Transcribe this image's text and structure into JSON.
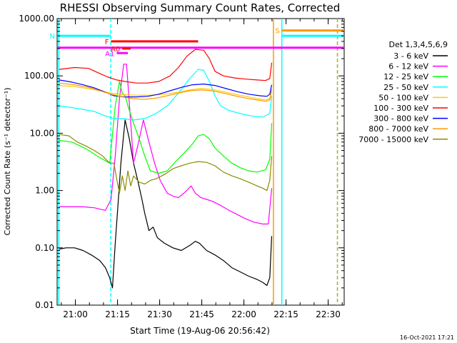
{
  "chart_data": {
    "type": "line",
    "title": "RHESSI Observing Summary Count Rates, Corrected",
    "xlabel": "Start Time (19-Aug-06 20:56:42)",
    "ylabel": "Corrected Count Rate (s⁻¹ detector⁻¹)",
    "yscale": "log",
    "ylim": [
      0.01,
      1000
    ],
    "x_units": "minutes after 20:56:42",
    "xlim": [
      -3.2,
      99.0
    ],
    "x_ticks": [
      {
        "label": "21:00",
        "value": 3.3
      },
      {
        "label": "21:15",
        "value": 18.3
      },
      {
        "label": "21:30",
        "value": 33.3
      },
      {
        "label": "21:45",
        "value": 48.3
      },
      {
        "label": "22:00",
        "value": 63.3
      },
      {
        "label": "22:15",
        "value": 78.3
      },
      {
        "label": "22:30",
        "value": 93.3
      }
    ],
    "y_ticks": [
      {
        "label": "1000.00",
        "value": 1000
      },
      {
        "label": "100.00",
        "value": 100
      },
      {
        "label": "10.00",
        "value": 10
      },
      {
        "label": "1.00",
        "value": 1
      },
      {
        "label": "0.10",
        "value": 0.1
      },
      {
        "label": "0.01",
        "value": 0.01
      }
    ],
    "legend_title": "Det 1,3,4,5,6,9",
    "legend_position": "right",
    "series": [
      {
        "name": "3 - 6 keV",
        "color": "#000000",
        "points": [
          [
            -2.5,
            0.095
          ],
          [
            0,
            0.1
          ],
          [
            3,
            0.1
          ],
          [
            6,
            0.09
          ],
          [
            9,
            0.075
          ],
          [
            12,
            0.06
          ],
          [
            14,
            0.045
          ],
          [
            15.5,
            0.03
          ],
          [
            16.5,
            0.02
          ],
          [
            17.5,
            0.12
          ],
          [
            18.5,
            0.6
          ],
          [
            19.5,
            3
          ],
          [
            21,
            17
          ],
          [
            22.5,
            8
          ],
          [
            24,
            3
          ],
          [
            25.5,
            1.5
          ],
          [
            27,
            0.7
          ],
          [
            28,
            0.4
          ],
          [
            29.5,
            0.2
          ],
          [
            31,
            0.23
          ],
          [
            32.5,
            0.15
          ],
          [
            35,
            0.12
          ],
          [
            38,
            0.1
          ],
          [
            41,
            0.09
          ],
          [
            44,
            0.11
          ],
          [
            46,
            0.13
          ],
          [
            47.5,
            0.12
          ],
          [
            50,
            0.09
          ],
          [
            53,
            0.075
          ],
          [
            56,
            0.06
          ],
          [
            59,
            0.045
          ],
          [
            62,
            0.038
          ],
          [
            65,
            0.032
          ],
          [
            68,
            0.028
          ],
          [
            70,
            0.025
          ],
          [
            71.5,
            0.022
          ],
          [
            72.5,
            0.03
          ],
          [
            73.2,
            0.16
          ]
        ]
      },
      {
        "name": "6 - 12 keV",
        "color": "#ff00ff",
        "points": [
          [
            -2.5,
            0.52
          ],
          [
            2,
            0.52
          ],
          [
            6,
            0.52
          ],
          [
            10,
            0.5
          ],
          [
            14,
            0.45
          ],
          [
            16,
            0.7
          ],
          [
            17.5,
            4
          ],
          [
            19,
            40
          ],
          [
            20.5,
            160
          ],
          [
            21.5,
            160
          ],
          [
            23,
            15
          ],
          [
            24,
            3
          ],
          [
            25.5,
            6
          ],
          [
            27.5,
            17
          ],
          [
            29.5,
            7
          ],
          [
            31.5,
            3
          ],
          [
            33.5,
            1.5
          ],
          [
            36,
            0.9
          ],
          [
            38,
            0.8
          ],
          [
            40,
            0.75
          ],
          [
            42.5,
            0.95
          ],
          [
            44.5,
            1.2
          ],
          [
            46,
            0.9
          ],
          [
            48,
            0.75
          ],
          [
            50,
            0.7
          ],
          [
            52,
            0.65
          ],
          [
            55,
            0.55
          ],
          [
            58,
            0.45
          ],
          [
            61,
            0.38
          ],
          [
            64,
            0.32
          ],
          [
            67,
            0.28
          ],
          [
            70,
            0.26
          ],
          [
            72,
            0.26
          ],
          [
            73.2,
            1.1
          ]
        ]
      },
      {
        "name": "12 - 25 keV",
        "color": "#00ff00",
        "points": [
          [
            -2.5,
            7.5
          ],
          [
            2,
            7
          ],
          [
            5,
            6
          ],
          [
            8,
            5
          ],
          [
            11,
            4
          ],
          [
            14,
            3.3
          ],
          [
            15.5,
            3
          ],
          [
            17.5,
            30
          ],
          [
            19,
            80
          ],
          [
            20,
            50
          ],
          [
            21,
            45
          ],
          [
            22,
            30
          ],
          [
            24,
            15
          ],
          [
            26,
            8
          ],
          [
            28,
            4
          ],
          [
            30,
            2.2
          ],
          [
            33,
            2
          ],
          [
            36,
            2.2
          ],
          [
            39,
            3.2
          ],
          [
            42,
            4.5
          ],
          [
            45,
            6.5
          ],
          [
            47,
            9
          ],
          [
            49,
            9.5
          ],
          [
            51,
            8
          ],
          [
            53,
            5.5
          ],
          [
            56,
            4
          ],
          [
            59,
            3
          ],
          [
            62,
            2.5
          ],
          [
            65,
            2.2
          ],
          [
            68,
            2.1
          ],
          [
            71,
            2.3
          ],
          [
            72.5,
            3.5
          ],
          [
            73.2,
            15
          ]
        ]
      },
      {
        "name": "25 - 50 keV",
        "color": "#00ffff",
        "points": [
          [
            -2.5,
            30
          ],
          [
            2,
            28
          ],
          [
            6,
            26
          ],
          [
            10,
            24
          ],
          [
            14,
            20
          ],
          [
            17,
            18
          ],
          [
            20,
            18
          ],
          [
            24,
            17
          ],
          [
            28,
            18
          ],
          [
            32,
            22
          ],
          [
            36,
            30
          ],
          [
            40,
            50
          ],
          [
            44,
            90
          ],
          [
            47,
            130
          ],
          [
            49,
            125
          ],
          [
            51,
            80
          ],
          [
            53,
            45
          ],
          [
            55,
            30
          ],
          [
            58,
            25
          ],
          [
            62,
            22
          ],
          [
            66,
            20
          ],
          [
            70,
            19
          ],
          [
            72.5,
            22
          ],
          [
            73.2,
            45
          ]
        ]
      },
      {
        "name": "50 - 100 keV",
        "color": "#ffc800",
        "points": [
          [
            -2.5,
            68
          ],
          [
            3,
            65
          ],
          [
            8,
            60
          ],
          [
            12,
            55
          ],
          [
            16,
            50
          ],
          [
            20,
            47
          ],
          [
            25,
            46
          ],
          [
            30,
            46
          ],
          [
            35,
            48
          ],
          [
            40,
            52
          ],
          [
            44,
            57
          ],
          [
            48,
            60
          ],
          [
            52,
            58
          ],
          [
            56,
            53
          ],
          [
            60,
            48
          ],
          [
            64,
            44
          ],
          [
            68,
            40
          ],
          [
            71,
            38
          ],
          [
            72.5,
            40
          ],
          [
            73.2,
            60
          ]
        ]
      },
      {
        "name": "100 - 300 keV",
        "color": "#ff0000",
        "points": [
          [
            -2.5,
            130
          ],
          [
            3,
            140
          ],
          [
            8,
            135
          ],
          [
            12,
            110
          ],
          [
            15,
            95
          ],
          [
            18,
            85
          ],
          [
            21,
            80
          ],
          [
            25,
            75
          ],
          [
            29,
            75
          ],
          [
            33,
            80
          ],
          [
            37,
            100
          ],
          [
            40,
            140
          ],
          [
            43,
            220
          ],
          [
            46,
            290
          ],
          [
            49,
            280
          ],
          [
            51,
            200
          ],
          [
            53,
            120
          ],
          [
            56,
            100
          ],
          [
            60,
            92
          ],
          [
            64,
            88
          ],
          [
            68,
            85
          ],
          [
            71,
            83
          ],
          [
            72.5,
            90
          ],
          [
            73.2,
            170
          ]
        ]
      },
      {
        "name": "300 - 800 keV",
        "color": "#0000ff",
        "points": [
          [
            -2.5,
            85
          ],
          [
            2,
            78
          ],
          [
            6,
            70
          ],
          [
            10,
            62
          ],
          [
            14,
            52
          ],
          [
            17,
            45
          ],
          [
            21,
            43
          ],
          [
            25,
            43
          ],
          [
            29,
            44
          ],
          [
            33,
            48
          ],
          [
            37,
            55
          ],
          [
            41,
            63
          ],
          [
            45,
            70
          ],
          [
            49,
            72
          ],
          [
            53,
            68
          ],
          [
            57,
            60
          ],
          [
            61,
            53
          ],
          [
            65,
            48
          ],
          [
            69,
            45
          ],
          [
            71.5,
            44
          ],
          [
            72.5,
            48
          ],
          [
            73.2,
            70
          ]
        ]
      },
      {
        "name": "800 - 7000 keV",
        "color": "#ff9900",
        "points": [
          [
            -2.5,
            75
          ],
          [
            3,
            70
          ],
          [
            8,
            63
          ],
          [
            12,
            55
          ],
          [
            16,
            48
          ],
          [
            20,
            43
          ],
          [
            24,
            40
          ],
          [
            28,
            39
          ],
          [
            32,
            41
          ],
          [
            36,
            45
          ],
          [
            40,
            50
          ],
          [
            44,
            55
          ],
          [
            48,
            57
          ],
          [
            52,
            55
          ],
          [
            56,
            50
          ],
          [
            60,
            45
          ],
          [
            64,
            41
          ],
          [
            68,
            38
          ],
          [
            71,
            36
          ],
          [
            72.5,
            38
          ],
          [
            73.2,
            55
          ]
        ]
      },
      {
        "name": "7000 - 15000 keV",
        "color": "#8b8b00",
        "points": [
          [
            -2.5,
            9.5
          ],
          [
            1,
            9
          ],
          [
            4,
            7
          ],
          [
            7,
            6
          ],
          [
            10,
            5
          ],
          [
            13,
            4
          ],
          [
            15.5,
            3
          ],
          [
            17,
            3
          ],
          [
            18,
            1.6
          ],
          [
            19,
            0.9
          ],
          [
            20,
            1.8
          ],
          [
            21,
            1
          ],
          [
            22,
            2.2
          ],
          [
            23,
            1.2
          ],
          [
            24,
            1.8
          ],
          [
            26,
            1.4
          ],
          [
            28,
            1.3
          ],
          [
            30,
            1.5
          ],
          [
            32,
            1.6
          ],
          [
            35,
            1.9
          ],
          [
            38,
            2.4
          ],
          [
            41,
            2.7
          ],
          [
            44,
            3.0
          ],
          [
            47,
            3.2
          ],
          [
            50,
            3.1
          ],
          [
            53,
            2.7
          ],
          [
            56,
            2.1
          ],
          [
            59,
            1.8
          ],
          [
            62,
            1.6
          ],
          [
            65,
            1.4
          ],
          [
            68,
            1.2
          ],
          [
            70,
            1.1
          ],
          [
            71.5,
            1.0
          ],
          [
            72.5,
            1.5
          ],
          [
            73.2,
            4
          ]
        ]
      }
    ],
    "vertical_lines": [
      {
        "x": -2.6,
        "color": "#00ffff",
        "style": "solid"
      },
      {
        "x": 15.9,
        "color": "#00ffff",
        "style": "dashed"
      },
      {
        "x": 73.8,
        "color": "#ff9900",
        "style": "solid"
      },
      {
        "x": 76.8,
        "color": "#00ffff",
        "style": "solid"
      },
      {
        "x": 96.6,
        "color": "#00ffff",
        "style": "dashed"
      },
      {
        "x": 96.6,
        "color": "#ff9900",
        "style": "dashed"
      }
    ],
    "flag_bars": [
      {
        "label": "N",
        "color": "#00ffff",
        "x0": -3.2,
        "x1": 15.9,
        "y": 500
      },
      {
        "label": "S",
        "color": "#ff9900",
        "x0": 76.8,
        "x1": 99.0,
        "y": 620
      },
      {
        "label": "",
        "color": "#00ffff",
        "x0": 76.8,
        "x1": 99.0,
        "y": 500
      },
      {
        "label": "F",
        "color": "#ff0000",
        "x0": 16.0,
        "x1": 47.0,
        "y": 400
      },
      {
        "label": "",
        "color": "#ff00ff",
        "x0": -3.2,
        "x1": 99.0,
        "y": 310
      },
      {
        "label": "A0",
        "color": "#ff0000",
        "x0": 20.0,
        "x1": 23.0,
        "y": 300
      },
      {
        "label": "A1",
        "color": "#ff00ff",
        "x0": 18.0,
        "x1": 22.0,
        "y": 250
      }
    ]
  },
  "footer": {
    "date_stamp": "16-Oct-2021 17:21"
  }
}
